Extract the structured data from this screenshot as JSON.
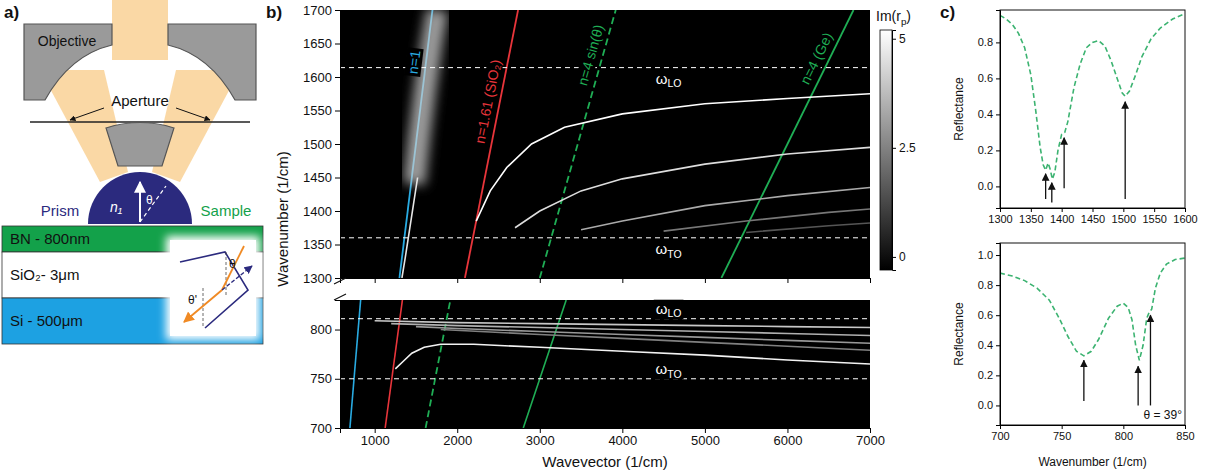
{
  "diagram": {
    "panel_label": "a)",
    "objective": "Objective",
    "aperture": "Aperture",
    "prism": "Prism",
    "sample": "Sample",
    "prism_index": "n₁",
    "angle": "θ",
    "inset_angle": "θ",
    "inset_angle_prime": "θ'",
    "layers": [
      {
        "text": "BN - 800nm",
        "color": "#13a14a"
      },
      {
        "text": "SiO₂- 3μm",
        "color": "#ffffff"
      },
      {
        "text": "Si - 500μm",
        "color": "#1da1e2"
      }
    ]
  },
  "chart_data": [
    {
      "type": "line",
      "panel_label": "b)",
      "ylabel": "Wavenumber (1/cm)",
      "xlim": [
        580,
        7000
      ],
      "xticks": [
        1000,
        2000,
        3000,
        4000,
        5000,
        6000,
        7000
      ],
      "ylim": [
        1300,
        1700
      ],
      "yticks": [
        1300,
        1350,
        1400,
        1450,
        1500,
        1550,
        1600,
        1650,
        1700
      ],
      "tick_labels": "y",
      "colorbar": {
        "label": [
          {
            "text": "Im(r"
          },
          {
            "text": "p",
            "sub": true
          },
          {
            "text": ")"
          }
        ],
        "range": [
          -0.3,
          5.2
        ],
        "ticks": [
          0,
          2.5,
          5
        ]
      },
      "hlines": [
        {
          "value": 1614,
          "label": [
            {
              "text": "ω"
            },
            {
              "text": "LO",
              "sub": true
            }
          ]
        },
        {
          "value": 1360,
          "label": [
            {
              "text": "ω"
            },
            {
              "text": "TO",
              "sub": true
            }
          ]
        }
      ],
      "series": [
        {
          "name": "n=1",
          "color": "#29abe2",
          "line_style": "solid",
          "x": [
            1300,
            1700
          ],
          "values": [
            1300,
            1700
          ]
        },
        {
          "name": "n=1.61 (SiO₂)",
          "color": "#e8353b",
          "line_style": "solid",
          "x": [
            2093,
            2737
          ],
          "values": [
            1300,
            1700
          ]
        },
        {
          "name": "n=4 sin(θ)",
          "color": "#1fae55",
          "line_style": "dashed",
          "x": [
            3000,
            3920
          ],
          "values": [
            1300,
            1700
          ]
        },
        {
          "name": "n=4 (Ge)",
          "color": "#1fae55",
          "line_style": "solid",
          "x": [
            5200,
            6800
          ],
          "values": [
            1300,
            1700
          ]
        },
        {
          "color": "#cfcfcf",
          "line_style": "glow",
          "x": [
            1480,
            1540,
            1610,
            1690,
            1760
          ],
          "values": [
            1440,
            1510,
            1580,
            1650,
            1700
          ]
        },
        {
          "color": "#e6e6e6",
          "line_style": "solid",
          "x": [
            1330,
            1370,
            1420,
            1470,
            1520
          ],
          "values": [
            1300,
            1330,
            1370,
            1410,
            1450
          ]
        },
        {
          "color": "#ffffff",
          "line_style": "solid",
          "x": [
            2230,
            2400,
            2600,
            2900,
            3300,
            4000,
            5000,
            6000,
            7000
          ],
          "values": [
            1385,
            1430,
            1465,
            1500,
            1525,
            1545,
            1560,
            1568,
            1575
          ]
        },
        {
          "color": "#dddddd",
          "line_style": "solid",
          "x": [
            2700,
            3000,
            3500,
            4000,
            5000,
            6000,
            7000
          ],
          "values": [
            1375,
            1400,
            1430,
            1448,
            1470,
            1485,
            1495
          ]
        },
        {
          "color": "#aaaaaa",
          "line_style": "solid",
          "x": [
            3500,
            4000,
            5000,
            6000,
            7000
          ],
          "values": [
            1372,
            1385,
            1408,
            1423,
            1435
          ]
        },
        {
          "color": "#777777",
          "line_style": "solid",
          "x": [
            4500,
            5500,
            6500,
            7000
          ],
          "values": [
            1370,
            1385,
            1398,
            1403
          ]
        },
        {
          "color": "#555555",
          "line_style": "solid",
          "x": [
            5500,
            6500,
            7000
          ],
          "values": [
            1368,
            1378,
            1382
          ]
        }
      ]
    },
    {
      "type": "line",
      "xlabel": "Wavevector (1/cm)",
      "xlim": [
        580,
        7000
      ],
      "xticks": [
        1000,
        2000,
        3000,
        4000,
        5000,
        6000,
        7000
      ],
      "ylim": [
        700,
        830
      ],
      "yticks": [
        700,
        750,
        800
      ],
      "hlines": [
        {
          "value": 811,
          "label": [
            {
              "text": "ω"
            },
            {
              "text": "LO",
              "sub": true
            }
          ]
        },
        {
          "value": 750,
          "label": [
            {
              "text": "ω"
            },
            {
              "text": "TO",
              "sub": true
            }
          ]
        }
      ],
      "series": [
        {
          "color": "#29abe2",
          "line_style": "solid",
          "x": [
            700,
            830
          ],
          "values": [
            700,
            830
          ]
        },
        {
          "color": "#e8353b",
          "line_style": "solid",
          "x": [
            1127,
            1336
          ],
          "values": [
            700,
            830
          ]
        },
        {
          "color": "#1fae55",
          "line_style": "dashed",
          "x": [
            1617,
            1917
          ],
          "values": [
            700,
            830
          ]
        },
        {
          "color": "#1fae55",
          "line_style": "solid",
          "x": [
            2800,
            3320
          ],
          "values": [
            700,
            830
          ]
        },
        {
          "color": "#f2f2f2",
          "line_style": "solid",
          "x": [
            1250,
            1350,
            1450,
            1600,
            1800,
            2200,
            3000,
            4000,
            5000,
            6000,
            7000
          ],
          "values": [
            760,
            768,
            776,
            782,
            785,
            785,
            782,
            778,
            774,
            769,
            765
          ]
        },
        {
          "color": "#c8c8c8",
          "line_style": "solid",
          "x": [
            1000,
            2000,
            3000,
            4000,
            5000,
            6000,
            7000
          ],
          "values": [
            809,
            807,
            806,
            805,
            804,
            803,
            802
          ]
        },
        {
          "color": "#b0b0b0",
          "line_style": "solid",
          "x": [
            1200,
            2000,
            3000,
            4000,
            5000,
            6000,
            7000
          ],
          "values": [
            806,
            804,
            802,
            800,
            798,
            796,
            794
          ]
        },
        {
          "color": "#989898",
          "line_style": "solid",
          "x": [
            1500,
            2000,
            3000,
            4000,
            5000,
            6000,
            7000
          ],
          "values": [
            803,
            801,
            798,
            795,
            792,
            789,
            786
          ]
        },
        {
          "color": "#808080",
          "line_style": "solid",
          "x": [
            1800,
            3000,
            4000,
            5000,
            6000,
            7000
          ],
          "values": [
            800,
            795,
            791,
            787,
            783,
            779
          ]
        }
      ]
    },
    {
      "type": "line",
      "panel_label": "c)",
      "ylabel": "Reflectance",
      "xlim": [
        1300,
        1600
      ],
      "xticks": [
        1300,
        1350,
        1400,
        1450,
        1500,
        1550,
        1600
      ],
      "ylim": [
        -0.12,
        0.98
      ],
      "yticks": [
        {
          "value": 0,
          "label": "0.0"
        },
        0.2,
        0.4,
        0.6,
        0.8
      ],
      "series": [
        {
          "color": "#3cb371",
          "line_style": "dashed",
          "x": [
            1300,
            1310,
            1320,
            1330,
            1340,
            1350,
            1358,
            1365,
            1370,
            1374,
            1378,
            1381,
            1385,
            1389,
            1394,
            1400,
            1405,
            1410,
            1420,
            1430,
            1440,
            1450,
            1460,
            1470,
            1480,
            1490,
            1498,
            1503,
            1510,
            1520,
            1530,
            1545,
            1560,
            1580,
            1600
          ],
          "values": [
            0.95,
            0.93,
            0.9,
            0.85,
            0.77,
            0.62,
            0.42,
            0.22,
            0.12,
            0.09,
            0.13,
            0.1,
            0.04,
            0.08,
            0.2,
            0.29,
            0.3,
            0.36,
            0.55,
            0.68,
            0.77,
            0.8,
            0.81,
            0.78,
            0.7,
            0.6,
            0.52,
            0.5,
            0.53,
            0.62,
            0.72,
            0.82,
            0.88,
            0.93,
            0.96
          ]
        }
      ],
      "arrows": [
        {
          "x": 1374,
          "from": -0.07,
          "to": 0.07
        },
        {
          "x": 1384,
          "from": -0.09,
          "to": 0.02
        },
        {
          "x": 1404,
          "from": -0.01,
          "to": 0.27
        },
        {
          "x": 1503,
          "from": -0.07,
          "to": 0.47
        }
      ]
    },
    {
      "type": "line",
      "xlabel": "Wavenumber (1/cm)",
      "ylabel": "Reflectance",
      "xlim": [
        700,
        850
      ],
      "xticks": [
        700,
        750,
        800,
        850
      ],
      "ylim": [
        -0.13,
        1.08
      ],
      "yticks": [
        {
          "value": 0,
          "label": "0.0"
        },
        0.2,
        0.4,
        0.6,
        0.8,
        {
          "value": 1,
          "label": "1.0"
        }
      ],
      "series": [
        {
          "color": "#3cb371",
          "line_style": "dashed",
          "x": [
            700,
            710,
            720,
            730,
            740,
            748,
            755,
            762,
            768,
            774,
            780,
            788,
            795,
            800,
            804,
            807,
            810,
            813,
            816,
            819,
            821,
            823,
            826,
            830,
            835,
            842,
            850
          ],
          "values": [
            0.88,
            0.86,
            0.83,
            0.78,
            0.7,
            0.58,
            0.46,
            0.36,
            0.33,
            0.36,
            0.44,
            0.58,
            0.66,
            0.68,
            0.65,
            0.57,
            0.4,
            0.3,
            0.4,
            0.58,
            0.62,
            0.64,
            0.78,
            0.88,
            0.94,
            0.97,
            0.98
          ]
        }
      ],
      "arrows": [
        {
          "x": 768,
          "from": 0.03,
          "to": 0.3
        },
        {
          "x": 812,
          "from": 0.0,
          "to": 0.26
        },
        {
          "x": 822,
          "from": 0.0,
          "to": 0.6
        }
      ],
      "annotations": [
        {
          "text": "θ = 39°"
        }
      ]
    }
  ]
}
